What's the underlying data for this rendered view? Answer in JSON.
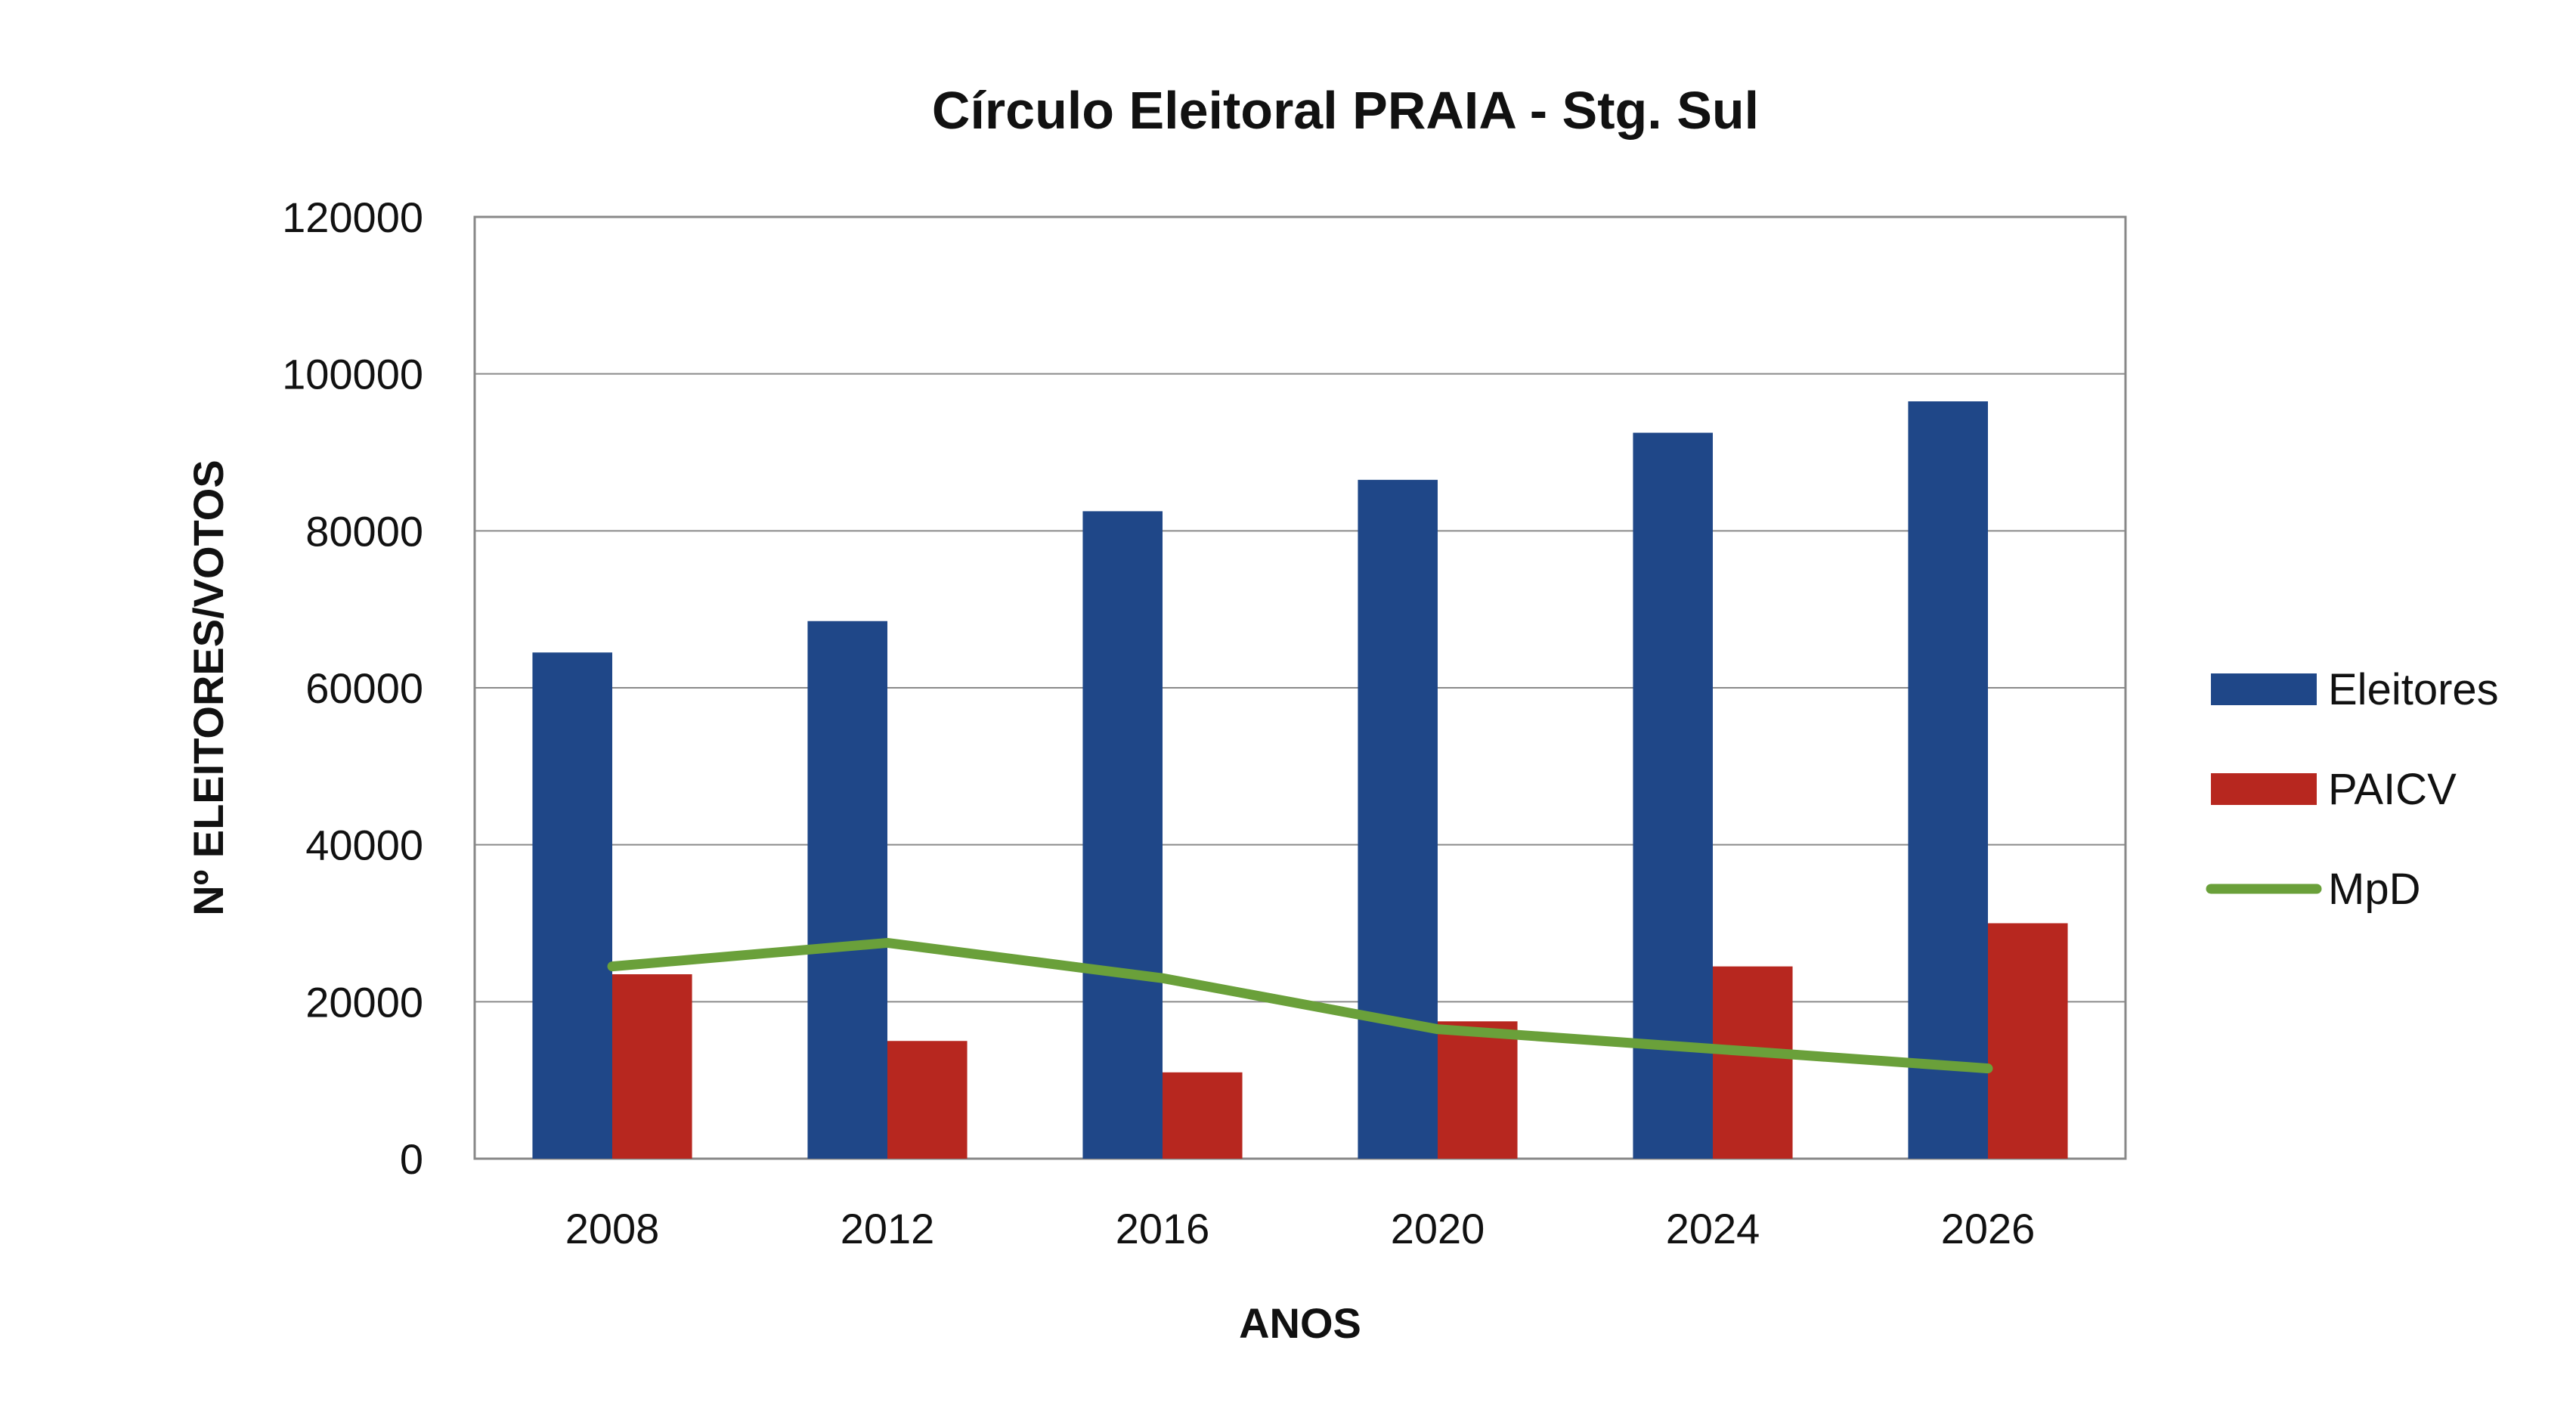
{
  "chart_data": {
    "type": "bar",
    "title": "Círculo Eleitoral PRAIA - Stg. Sul",
    "xlabel": "ANOS",
    "ylabel": "Nº ELEITORES/VOTOS",
    "categories": [
      "2008",
      "2012",
      "2016",
      "2020",
      "2024",
      "2026"
    ],
    "ylim": [
      0,
      120000
    ],
    "yticks": [
      "0",
      "20000",
      "40000",
      "60000",
      "80000",
      "100000",
      "120000"
    ],
    "grid": true,
    "legend_position": "right",
    "series": [
      {
        "name": "Eleitores",
        "kind": "bar",
        "color": "#1f4788",
        "values": [
          64500,
          68500,
          82500,
          86500,
          92500,
          96500
        ]
      },
      {
        "name": "PAICV",
        "kind": "bar",
        "color": "#b7271f",
        "values": [
          23500,
          15000,
          11000,
          17500,
          24500,
          30000
        ]
      },
      {
        "name": "MpD",
        "kind": "line",
        "color": "#6aa03a",
        "values": [
          24500,
          27500,
          23000,
          16500,
          14000,
          11500
        ]
      }
    ]
  }
}
